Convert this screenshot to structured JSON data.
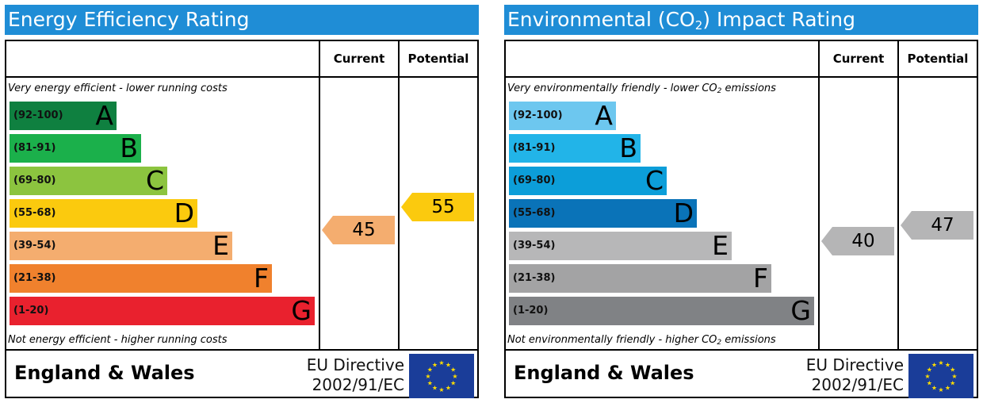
{
  "energy": {
    "title": "Energy Efficiency Rating",
    "header_current": "Current",
    "header_potential": "Potential",
    "caption_top": "Very energy efficient - lower running costs",
    "caption_bottom": "Not energy efficient - higher running costs",
    "region": "England & Wales",
    "directive_line1": "EU Directive",
    "directive_line2": "2002/91/EC",
    "flag_icon": "eu-flag-icon",
    "current": {
      "value": "45",
      "band_index": 4,
      "color": "#f4ad6f"
    },
    "potential": {
      "value": "55",
      "band_index": 3,
      "color": "#fbca0e"
    }
  },
  "environmental": {
    "title_pre": "Environmental (CO",
    "title_sub": "2",
    "title_post": ") Impact Rating",
    "header_current": "Current",
    "header_potential": "Potential",
    "caption_top_pre": "Very environmentally friendly - lower CO",
    "caption_top_sub": "2",
    "caption_top_post": " emissions",
    "caption_bottom_pre": "Not environmentally friendly - higher CO",
    "caption_bottom_sub": "2",
    "caption_bottom_post": " emissions",
    "region": "England & Wales",
    "directive_line1": "EU Directive",
    "directive_line2": "2002/91/EC",
    "flag_icon": "eu-flag-icon",
    "current": {
      "value": "40",
      "band_index": 4,
      "color": "#b5b5b6"
    },
    "potential": {
      "value": "47",
      "band_index": 4,
      "color": "#b5b5b6"
    }
  },
  "chart_data": [
    {
      "type": "bar",
      "title": "Energy Efficiency Rating",
      "categories": [
        "A",
        "B",
        "C",
        "D",
        "E",
        "F",
        "G"
      ],
      "ranges": [
        "(92-100)",
        "(81-91)",
        "(69-80)",
        "(55-68)",
        "(39-54)",
        "(21-38)",
        "(1-20)"
      ],
      "colors": [
        "#0f8040",
        "#1bb04b",
        "#8cc43f",
        "#fbca0e",
        "#f4ad6f",
        "#f0812d",
        "#e9212e"
      ],
      "current": 45,
      "potential": 55
    },
    {
      "type": "bar",
      "title": "Environmental (CO2) Impact Rating",
      "categories": [
        "A",
        "B",
        "C",
        "D",
        "E",
        "F",
        "G"
      ],
      "ranges": [
        "(92-100)",
        "(81-91)",
        "(69-80)",
        "(55-68)",
        "(39-54)",
        "(21-38)",
        "(1-20)"
      ],
      "colors": [
        "#6dc7ef",
        "#22b4e8",
        "#0c9ed9",
        "#0a73b8",
        "#b7b7b8",
        "#a3a3a4",
        "#808285"
      ],
      "current": 40,
      "potential": 47
    }
  ]
}
